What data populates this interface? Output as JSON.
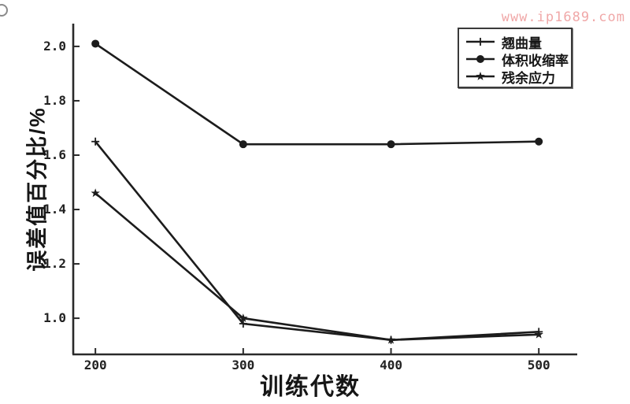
{
  "figure": {
    "watermark_text": "www.ip1689.com",
    "watermark_color": "#f0a8a8",
    "corner_mark": "o"
  },
  "chart_data": {
    "type": "line",
    "title": "",
    "xlabel": "训练代数",
    "ylabel": "误差值百分比/%",
    "x": [
      200,
      300,
      400,
      500
    ],
    "series": [
      {
        "name": "翘曲量",
        "marker": "plus",
        "values": [
          1.65,
          0.98,
          0.92,
          0.95
        ]
      },
      {
        "name": "体积收缩率",
        "marker": "circle",
        "values": [
          2.01,
          1.64,
          1.64,
          1.65
        ]
      },
      {
        "name": "残余应力",
        "marker": "star",
        "values": [
          1.46,
          1.0,
          0.92,
          0.94
        ]
      }
    ],
    "xticks": [
      200,
      300,
      400,
      500
    ],
    "xtick_labels": [
      "200",
      "300",
      "400",
      "500"
    ],
    "yticks": [
      1.0,
      1.2,
      1.4,
      1.6,
      1.8,
      2.0
    ],
    "ytick_labels": [
      "1.0",
      "1.2",
      "1.4",
      "1.6",
      "1.8",
      "2.0"
    ],
    "xlim": [
      185,
      526
    ],
    "ylim": [
      0.867,
      2.078
    ],
    "grid": false,
    "legend_position": "top-right",
    "line_color": "#1c1c1c",
    "axis_color": "#2a2a2a"
  }
}
